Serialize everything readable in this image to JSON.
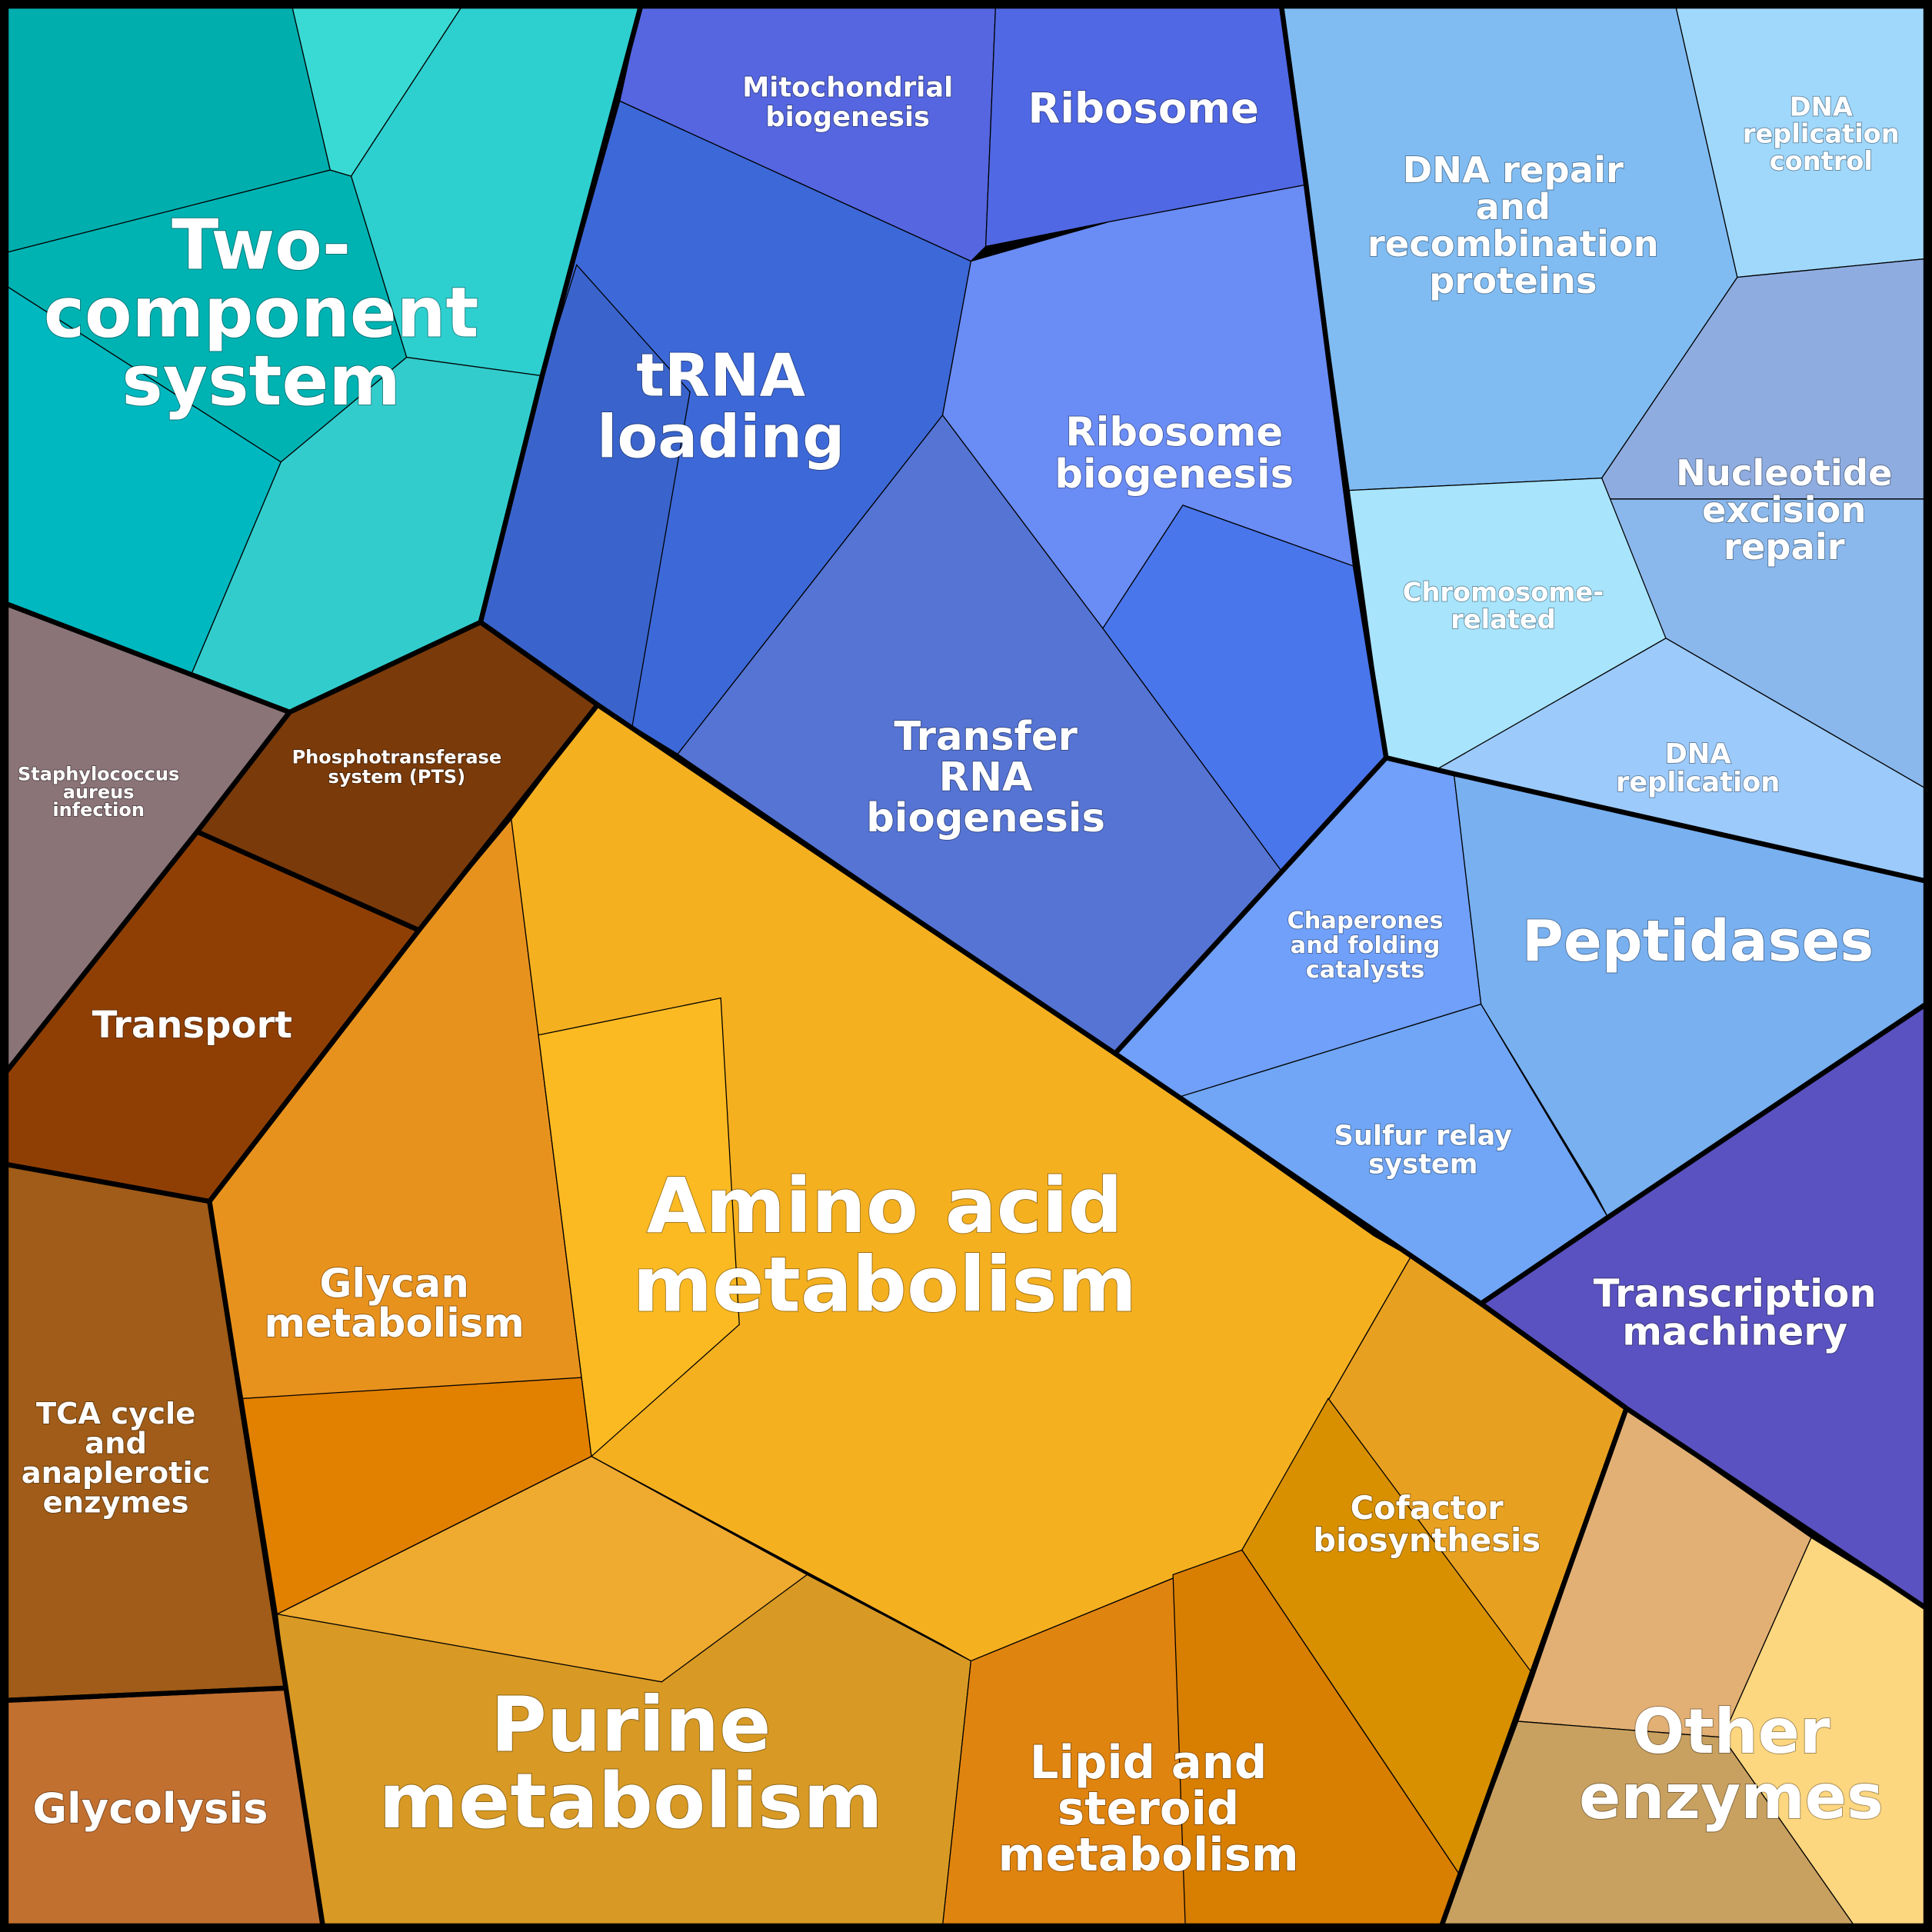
{
  "regions": [
    {
      "lines": [
        "Two-",
        "component",
        "system"
      ]
    },
    {
      "lines": [
        "Mitochondrial",
        "biogenesis"
      ]
    },
    {
      "lines": [
        "Ribosome"
      ]
    },
    {
      "lines": [
        "tRNA",
        "loading"
      ]
    },
    {
      "lines": [
        "Ribosome",
        "biogenesis"
      ]
    },
    {
      "lines": [
        "Transfer",
        "RNA",
        "biogenesis"
      ]
    },
    {
      "lines": [
        "DNA repair",
        "and",
        "recombination",
        "proteins"
      ]
    },
    {
      "lines": [
        "DNA",
        "replication",
        "control"
      ]
    },
    {
      "lines": [
        "Nucleotide",
        "excision",
        "repair"
      ]
    },
    {
      "lines": [
        "Chromosome-",
        "related"
      ]
    },
    {
      "lines": [
        "DNA",
        "replication"
      ]
    },
    {
      "lines": [
        "Chaperones",
        "and folding",
        "catalysts"
      ]
    },
    {
      "lines": [
        "Peptidases"
      ]
    },
    {
      "lines": [
        "Sulfur relay",
        "system"
      ]
    },
    {
      "lines": [
        "Transcription",
        "machinery"
      ]
    },
    {
      "lines": [
        "Staphylococcus",
        "aureus",
        "infection"
      ]
    },
    {
      "lines": [
        "Phosphotransferase",
        "system (PTS)"
      ]
    },
    {
      "lines": [
        "Transport"
      ]
    },
    {
      "lines": [
        "TCA cycle",
        "and",
        "anaplerotic",
        "enzymes"
      ]
    },
    {
      "lines": [
        "Glycolysis"
      ]
    },
    {
      "lines": [
        "Glycan",
        "metabolism"
      ]
    },
    {
      "lines": [
        "Amino acid",
        "metabolism"
      ]
    },
    {
      "lines": [
        "Purine",
        "metabolism"
      ]
    },
    {
      "lines": [
        "Lipid and",
        "steroid",
        "metabolism"
      ]
    },
    {
      "lines": [
        "Cofactor",
        "biosynthesis"
      ]
    },
    {
      "lines": [
        "Other",
        "enzymes"
      ]
    }
  ]
}
